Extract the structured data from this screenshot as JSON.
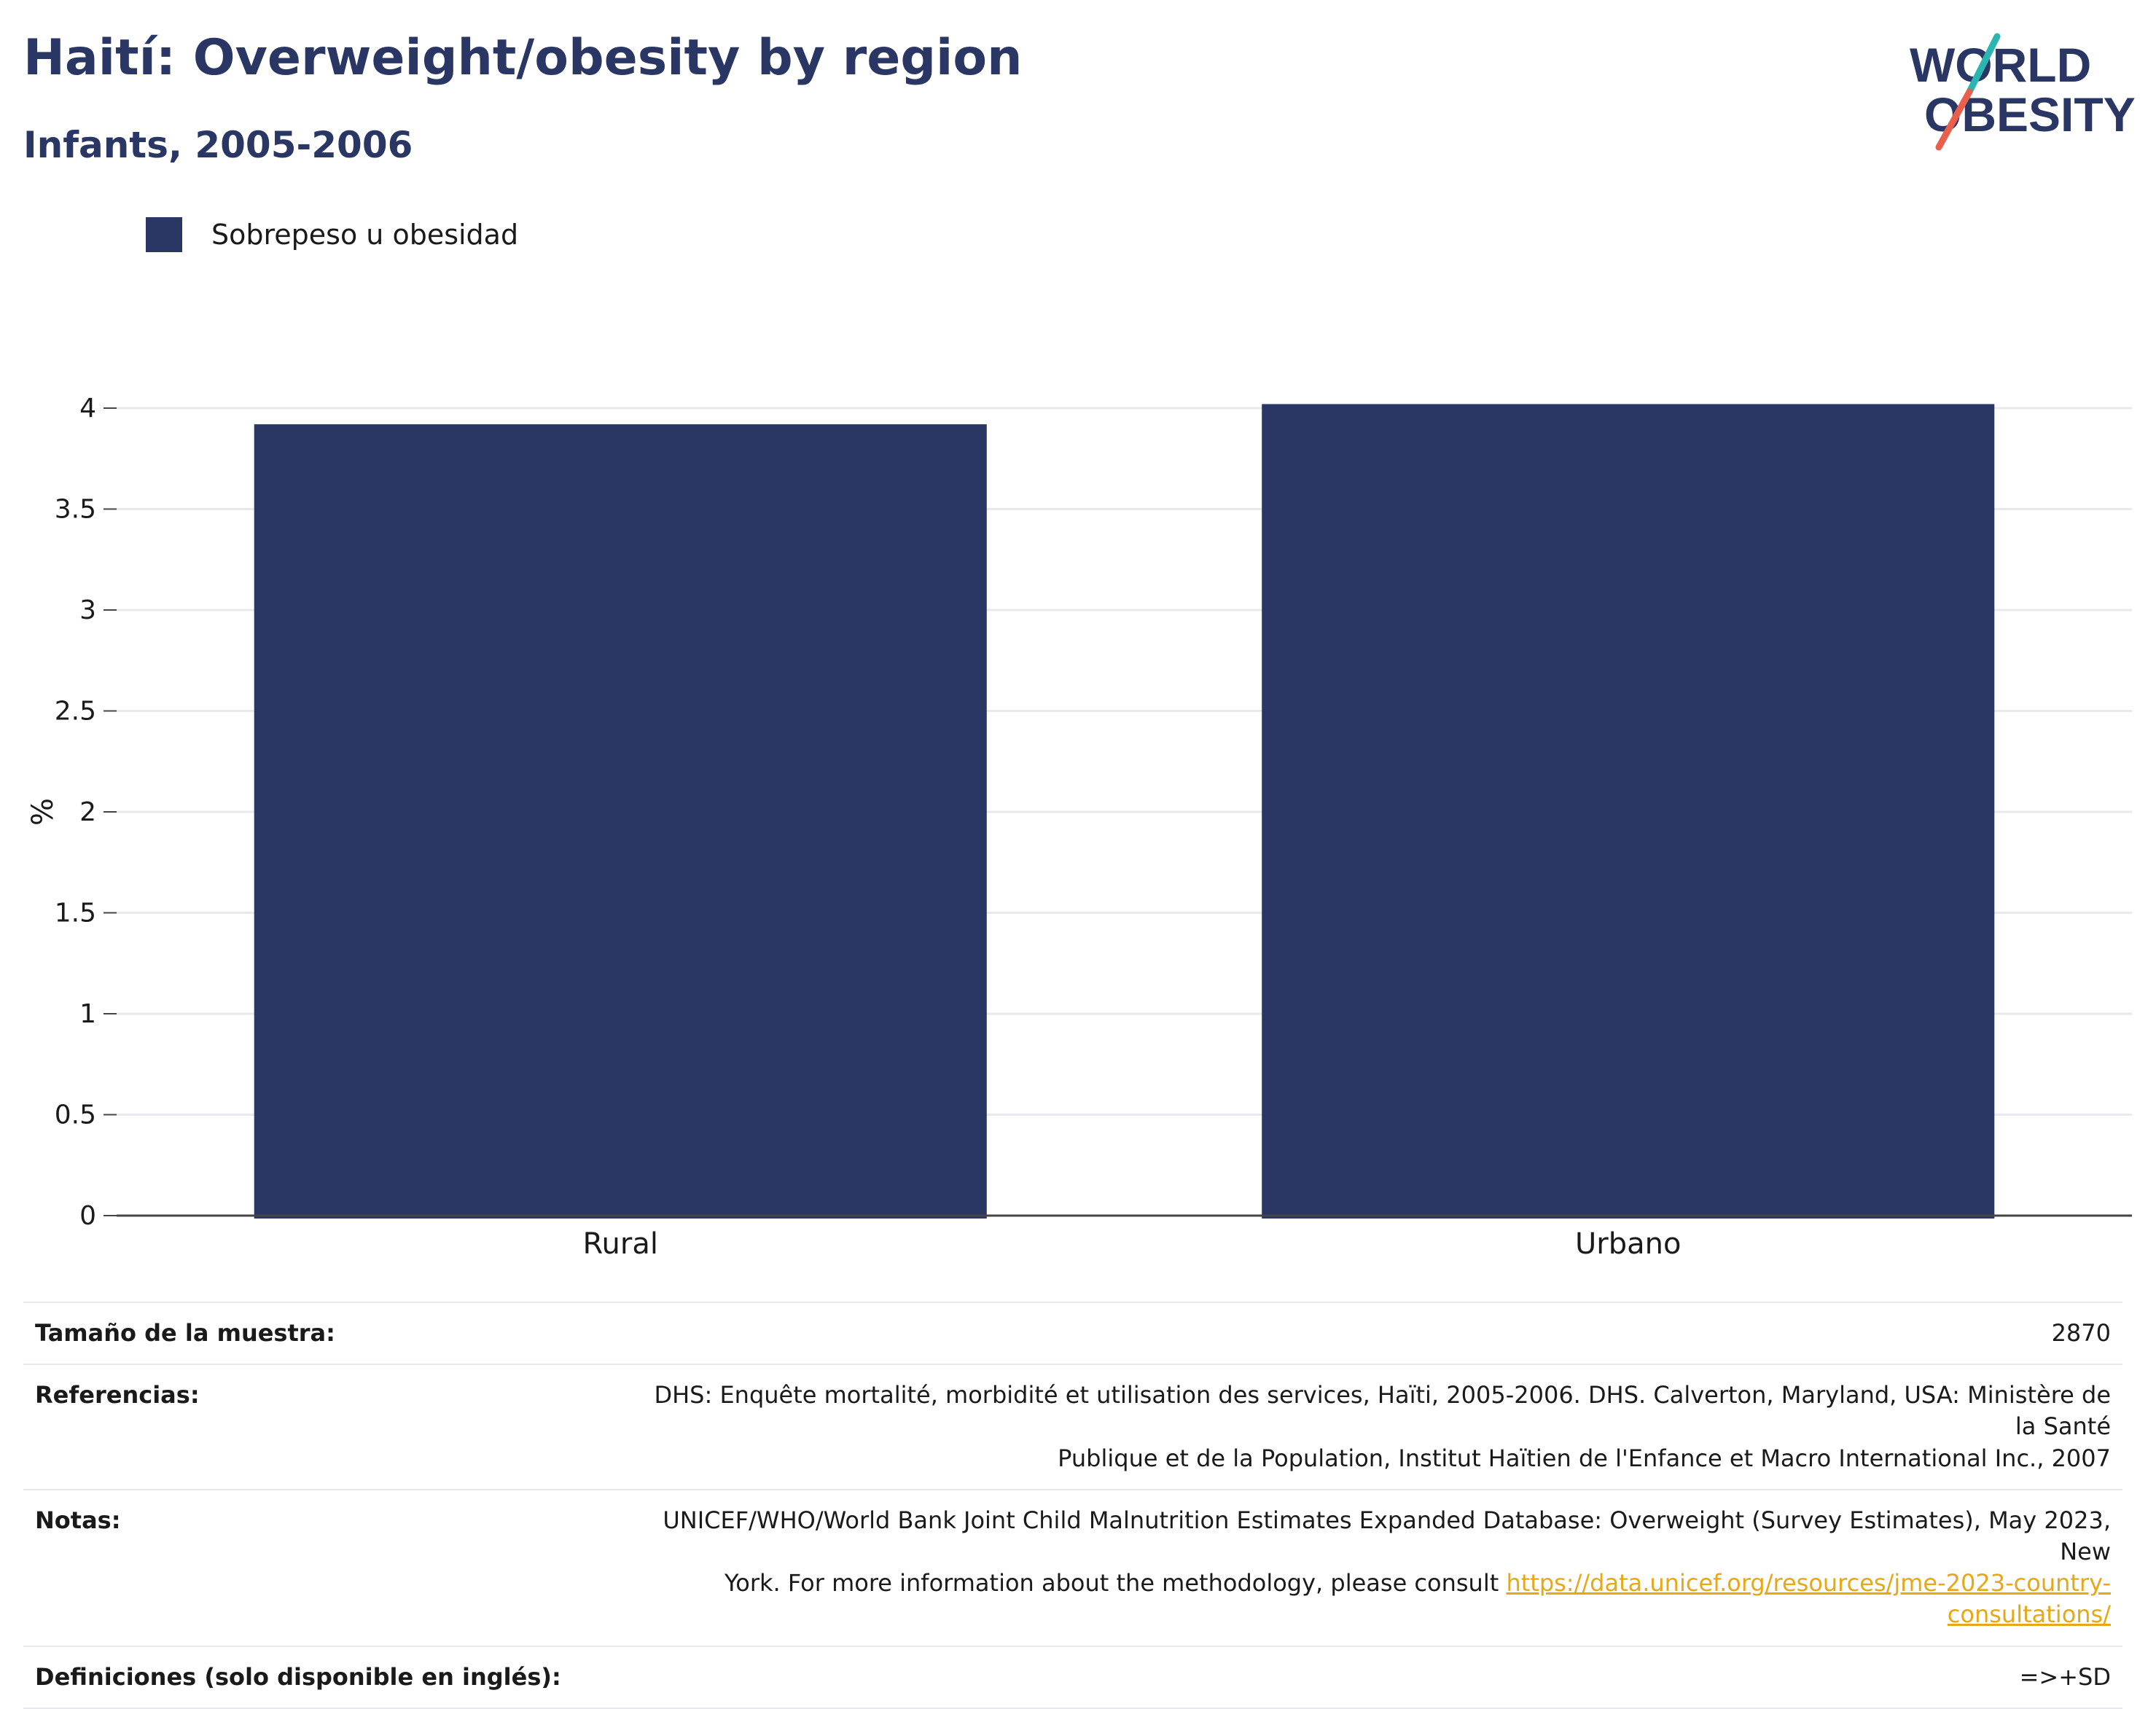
{
  "header": {
    "title": "Haití: Overweight/obesity by region",
    "subtitle": "Infants, 2005-2006"
  },
  "logo": {
    "line1": "WORLD",
    "line2": "OBESITY",
    "colors": {
      "text": "#2a3764",
      "slash_top": "#2bb5b0",
      "slash_bottom": "#e8604c"
    }
  },
  "legend": {
    "label": "Sobrepeso u obesidad",
    "color": "#2a3764"
  },
  "chart_data": {
    "type": "bar",
    "categories": [
      "Rural",
      "Urbano"
    ],
    "series": [
      {
        "name": "Sobrepeso u obesidad",
        "values": [
          3.92,
          4.02
        ],
        "color": "#2a3764"
      }
    ],
    "ylabel": "%",
    "ylim": [
      0,
      4
    ],
    "yticks": [
      0,
      0.5,
      1,
      1.5,
      2,
      2.5,
      3,
      3.5,
      4
    ],
    "ytick_labels": [
      "0",
      "0.5",
      "1",
      "1.5",
      "2",
      "2.5",
      "3",
      "3.5",
      "4"
    ],
    "grid": true,
    "legend_position": "top-left"
  },
  "info": {
    "sample_size": {
      "label": "Tamaño de la muestra:",
      "value": "2870"
    },
    "references": {
      "label": "Referencias:",
      "value_line1": "DHS: Enquête mortalité, morbidité et utilisation des services, Haïti, 2005-2006. DHS. Calverton, Maryland, USA: Ministère de la Santé",
      "value_line2": "Publique et de la Population, Institut Haïtien de l'Enfance et Macro International Inc., 2007"
    },
    "notes": {
      "label": "Notas:",
      "value_line1": "UNICEF/WHO/World Bank Joint Child Malnutrition Estimates Expanded Database: Overweight (Survey Estimates), May 2023, New",
      "value_line2_text": "York. For more information about the methodology, please consult ",
      "link": "https://data.unicef.org/resources/jme-2023-country-consultations/"
    },
    "definitions": {
      "label": "Definiciones (solo disponible en inglés):",
      "value": "=>+SD"
    }
  }
}
